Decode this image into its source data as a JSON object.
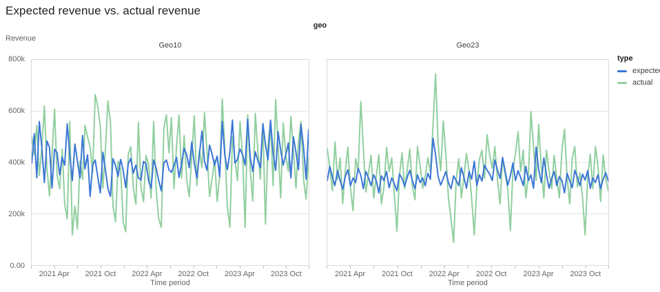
{
  "title": "Expected revenue vs. actual revenue",
  "facet_group_label": "geo",
  "y_axis_title": "Revenue",
  "x_axis_title": "Time period",
  "legend": {
    "title": "type",
    "items": [
      {
        "label": "expected",
        "color": "#3b76d6"
      },
      {
        "label": "actual",
        "color": "#91cf9f"
      }
    ]
  },
  "colors": {
    "grid": "#e4e4e4",
    "plot_border": "#d9d9d9",
    "axis_text": "#5f6368",
    "expected": "#3b76d6",
    "actual": "#91cf9f"
  },
  "chart_data": {
    "type": "line",
    "title": "Expected revenue vs. actual revenue",
    "xlabel": "Time period",
    "ylabel": "Revenue",
    "x_domain_months": 36,
    "x_domain_note": "uniformly spaced points from 2021 Jan to 2023 Dec",
    "ylim": [
      0,
      800000
    ],
    "value_unit": "thousands",
    "y_gridlines": [
      600,
      400,
      200
    ],
    "y_ticks": [
      {
        "value": 800,
        "label": "800k"
      },
      {
        "value": 600,
        "label": "600k"
      },
      {
        "value": 400,
        "label": "400k"
      },
      {
        "value": 200,
        "label": "200k"
      },
      {
        "value": 0,
        "label": "0.00"
      }
    ],
    "x_minor_tick_months": [
      0,
      3,
      6,
      9,
      12,
      15,
      18,
      21,
      24,
      27,
      30,
      33,
      36
    ],
    "x_ticks": [
      {
        "month": 3,
        "label": "2021 Apr"
      },
      {
        "month": 9,
        "label": "2021 Oct"
      },
      {
        "month": 15,
        "label": "2022 Apr"
      },
      {
        "month": 21,
        "label": "2022 Oct"
      },
      {
        "month": 27,
        "label": "2023 Apr"
      },
      {
        "month": 33,
        "label": "2023 Oct"
      }
    ],
    "legend_position": "right",
    "facets": [
      {
        "title": "Geo10",
        "series": [
          {
            "name": "expected",
            "color": "#3b76d6",
            "values": [
              398,
              512,
              341,
              560,
              455,
              322,
              484,
              460,
              301,
              452,
              438,
              352,
              420,
              390,
              551,
              430,
              330,
              472,
              405,
              340,
              505,
              375,
              430,
              268,
              390,
              410,
              345,
              282,
              440,
              372,
              300,
              268,
              415,
              388,
              346,
              412,
              370,
              302,
              395,
              416,
              358,
              390,
              340,
              332,
              404,
              395,
              328,
              300,
              410,
              378,
              330,
              290,
              398,
              410,
              372,
              362,
              388,
              420,
              342,
              398,
              455,
              430,
              380,
              480,
              397,
              340,
              430,
              523,
              405,
              370,
              468,
              432,
              390,
              425,
              345,
              560,
              430,
              372,
              440,
              566,
              398,
              412,
              453,
              430,
              390,
              570,
              420,
              365,
              442,
              408,
              380,
              552,
              470,
              410,
              565,
              438,
              370,
              520,
              448,
              390,
              430,
              476,
              340,
              500,
              440,
              372,
              548,
              460,
              335,
              528
            ]
          },
          {
            "name": "actual",
            "color": "#91cf9f",
            "values": [
              500,
              430,
              545,
              350,
              460,
              620,
              380,
              270,
              430,
              608,
              350,
              298,
              452,
              238,
              180,
              560,
              118,
              230,
              140,
              405,
              335,
              545,
              500,
              460,
              362,
              665,
              618,
              540,
              300,
              450,
              640,
              560,
              230,
              170,
              405,
              375,
              168,
              130,
              430,
              462,
              300,
              238,
              555,
              302,
              248,
              428,
              388,
              262,
              560,
              292,
              180,
              148,
              532,
              586,
              438,
              575,
              298,
              462,
              585,
              340,
              505,
              332,
              268,
              425,
              582,
              310,
              448,
              380,
              595,
              442,
              268,
              338,
              410,
              248,
              350,
              648,
              455,
              230,
              148,
              500,
              412,
              330,
              560,
              428,
              148,
              586,
              370,
              250,
              592,
              448,
              335,
              545,
              160,
              468,
              560,
              310,
              645,
              462,
              262,
              555,
              430,
              365,
              580,
              450,
              300,
              480,
              560,
              335,
              258,
              420
            ]
          }
        ]
      },
      {
        "title": "Geo23",
        "series": [
          {
            "name": "expected",
            "color": "#3b76d6",
            "values": [
              330,
              385,
              342,
              310,
              368,
              330,
              296,
              345,
              372,
              310,
              340,
              322,
              378,
              350,
              298,
              365,
              340,
              310,
              352,
              330,
              282,
              348,
              330,
              365,
              302,
              340,
              318,
              290,
              355,
              338,
              308,
              342,
              370,
              330,
              298,
              352,
              322,
              340,
              310,
              358,
              335,
              495,
              430,
              345,
              312,
              338,
              365,
              322,
              298,
              348,
              330,
              310,
              380,
              342,
              300,
              365,
              335,
              405,
              310,
              352,
              328,
              390,
              370,
              355,
              330,
              410,
              372,
              338,
              420,
              365,
              312,
              348,
              398,
              330,
              368,
              342,
              310,
              385,
              330,
              352,
              300,
              460,
              372,
              322,
              418,
              352,
              300,
              338,
              365,
              310,
              345,
              330,
              282,
              358,
              330,
              302,
              370,
              342,
              310,
              355,
              332,
              368,
              300,
              340,
              322,
              352,
              298,
              335,
              360,
              328
            ]
          },
          {
            "name": "actual",
            "color": "#91cf9f",
            "values": [
              455,
              380,
              290,
              480,
              335,
              418,
              240,
              368,
              460,
              300,
              212,
              415,
              368,
              638,
              455,
              285,
              360,
              428,
              262,
              345,
              430,
              238,
              302,
              458,
              365,
              418,
              282,
              132,
              348,
              438,
              298,
              370,
              452,
              310,
              255,
              462,
              388,
              300,
              345,
              418,
              362,
              540,
              745,
              470,
              368,
              562,
              430,
              262,
              180,
              88,
              332,
              415,
              262,
              348,
              435,
              368,
              262,
              118,
              305,
              412,
              448,
              338,
              508,
              428,
              378,
              462,
              335,
              238,
              415,
              352,
              298,
              135,
              368,
              435,
              520,
              365,
              448,
              262,
              348,
              598,
              462,
              330,
              548,
              380,
              262,
              448,
              368,
              298,
              428,
              338,
              262,
              448,
              530,
              345,
              238,
              415,
              462,
              305,
              360,
              262,
              118,
              348,
              432,
              298,
              462,
              385,
              248,
              430,
              335,
              290
            ]
          }
        ]
      }
    ]
  }
}
